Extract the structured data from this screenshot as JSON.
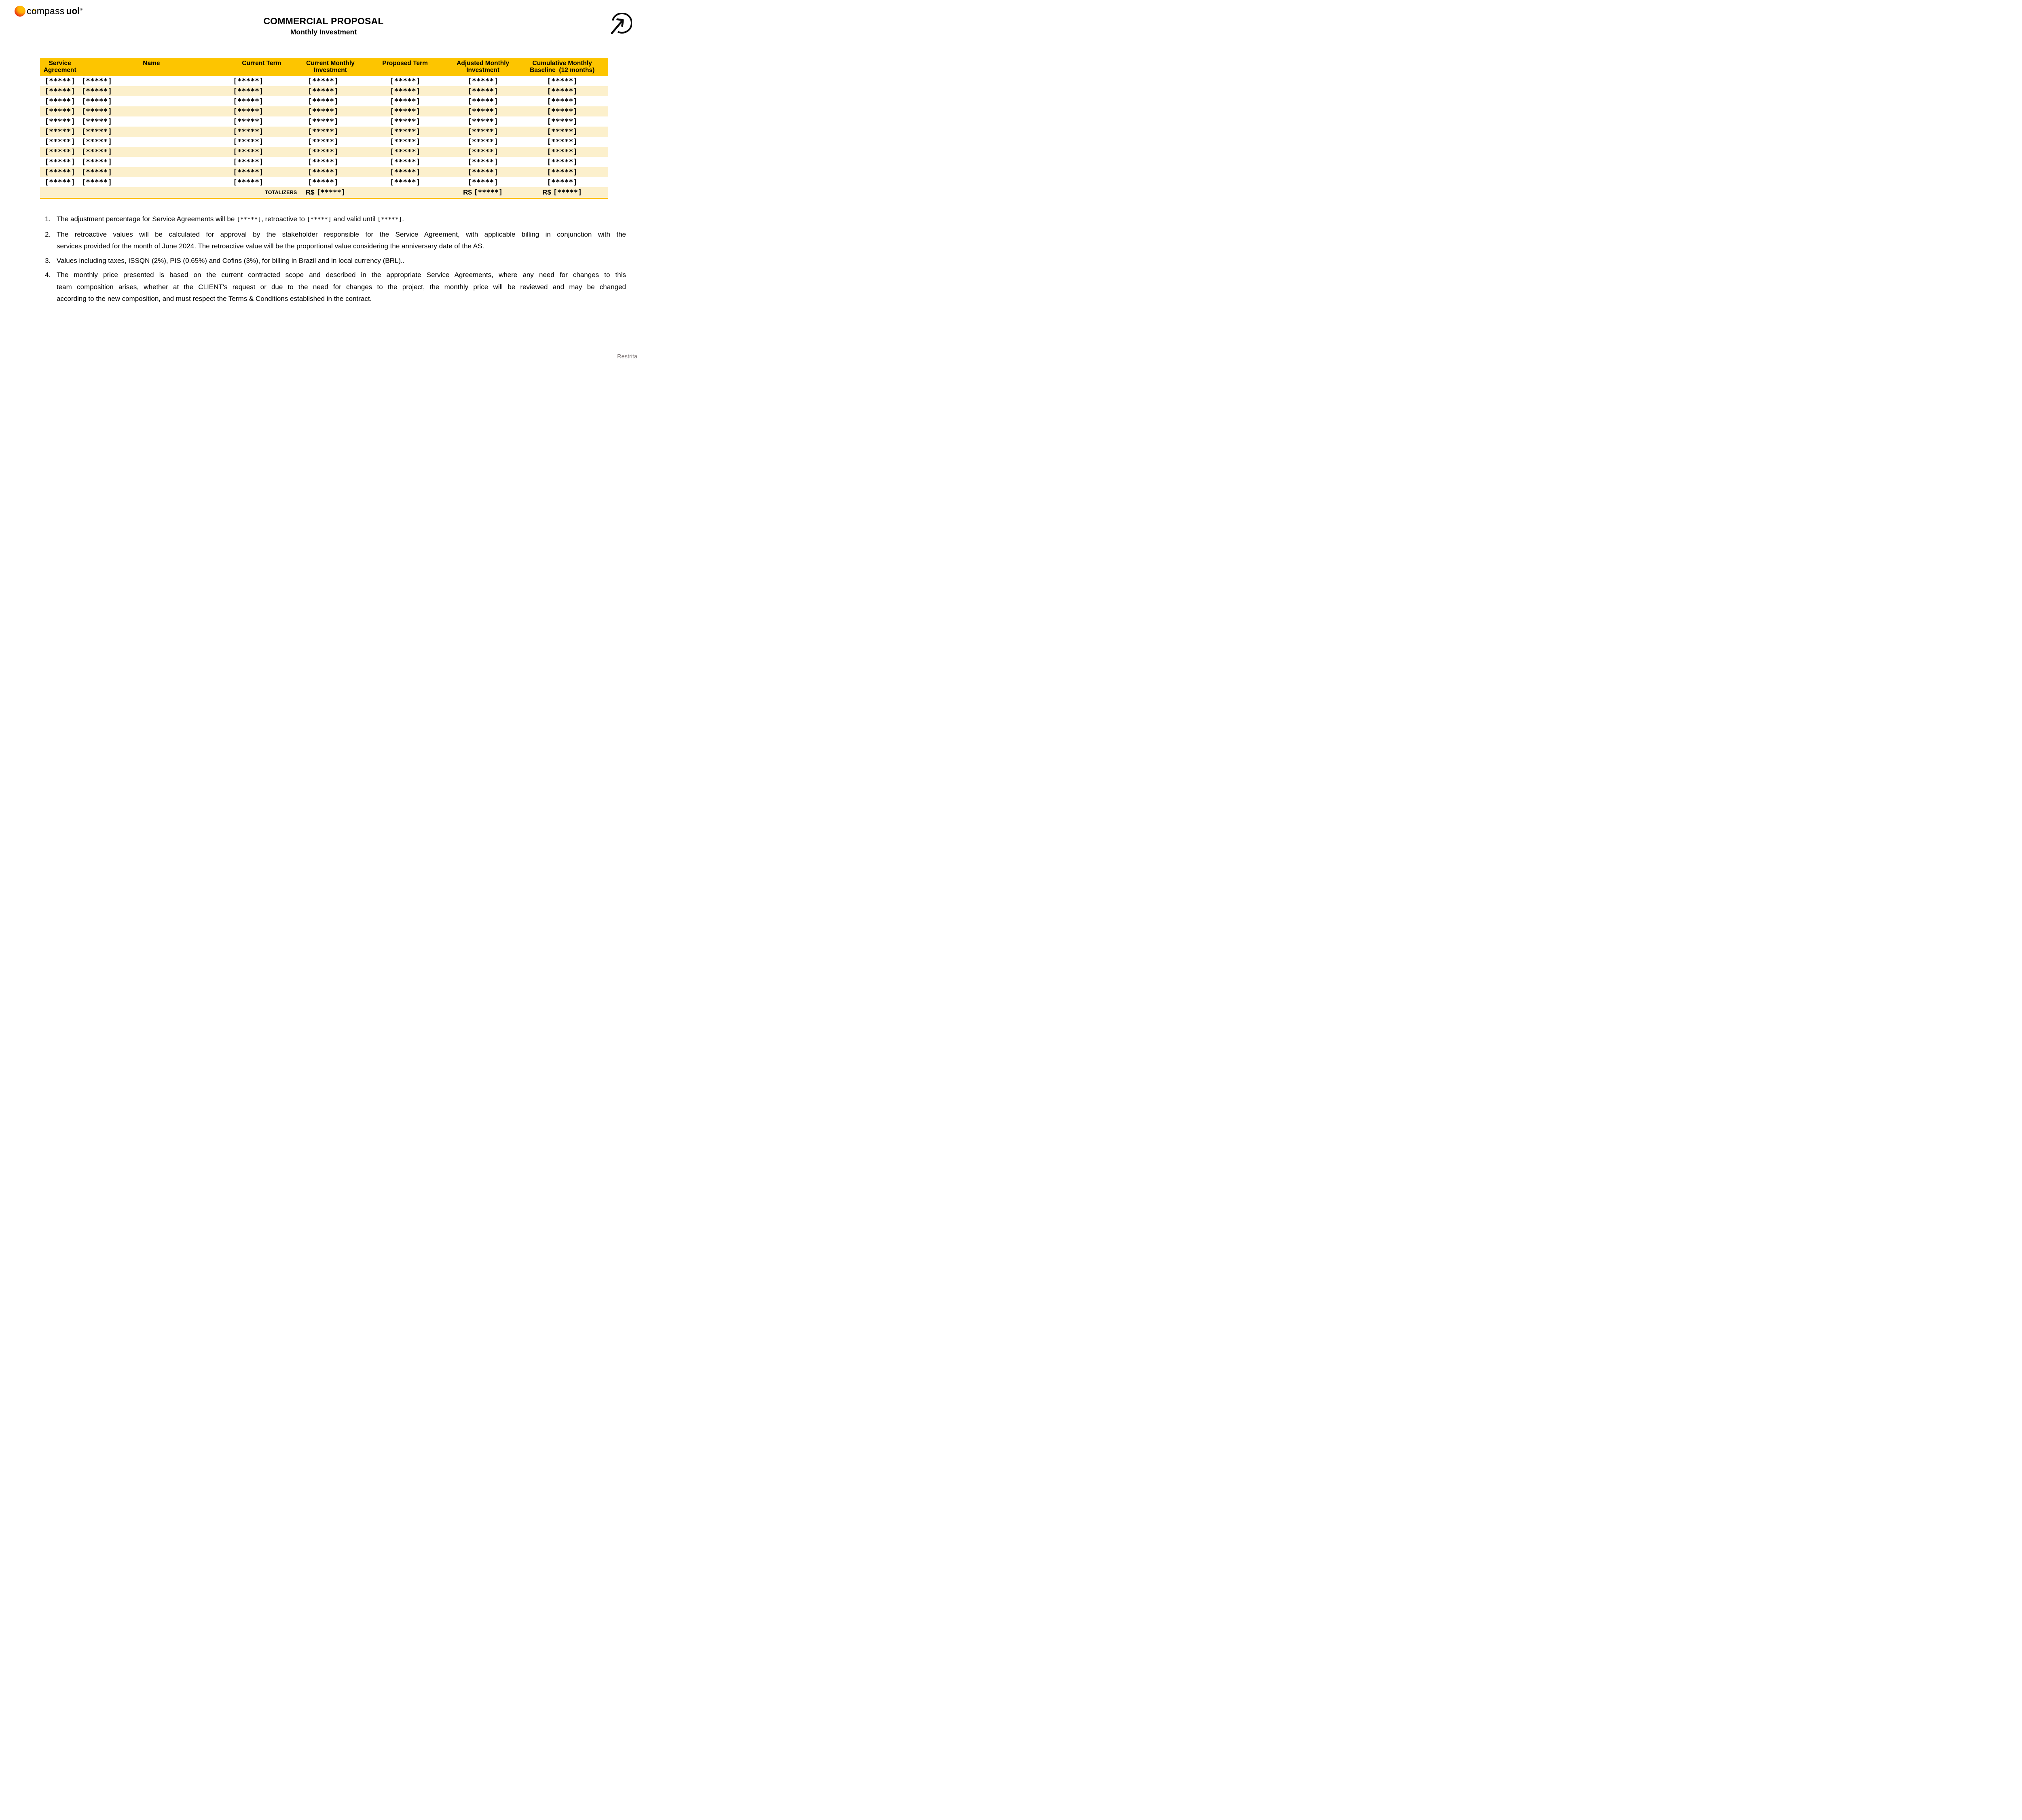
{
  "logo": {
    "compass_c": "c",
    "compass_o": "o",
    "compass_rest": "mpass",
    "uol": "uol",
    "registered": "®"
  },
  "header": {
    "title": "COMMERCIAL PROPOSAL",
    "subtitle": "Monthly Investment"
  },
  "icons": {
    "top_right": "arrow-up-right-circle-icon",
    "logo_mark": "compass-uol-sphere",
    "logo_needle": "compass-needle"
  },
  "colors": {
    "header_gold": "#FDC500",
    "row_cream": "#FCF0CC",
    "totalizer_bar": "#FDBC02",
    "footer_gray": "#7B7474",
    "logo_red": "#E93111",
    "logo_orange": "#F4740C",
    "logo_yellow": "#FFC502"
  },
  "table": {
    "placeholder": "[*****]",
    "columns": [
      {
        "id": "service_agreement",
        "lines": [
          "Service",
          "Agreement"
        ],
        "width_pct": 7.0
      },
      {
        "id": "name",
        "lines": [
          "Name"
        ],
        "width_pct": 25.2
      },
      {
        "id": "current_term",
        "lines": [
          "Current Term"
        ],
        "width_pct": 13.6
      },
      {
        "id": "current_monthly_investment",
        "lines": [
          "Current Monthly",
          "Investment"
        ],
        "width_pct": 10.6
      },
      {
        "id": "proposed_term",
        "lines": [
          "Proposed Term"
        ],
        "width_pct": 15.7
      },
      {
        "id": "adjusted_monthly_investment",
        "lines": [
          "Adjusted Monthly",
          "Investment"
        ],
        "width_pct": 11.7
      },
      {
        "id": "cumulative_monthly_baseline",
        "lines": [
          "Cumulative Monthly",
          "Baseline  (12 months)"
        ],
        "width_pct": 16.2
      }
    ],
    "rows": [
      [
        "[*****]",
        "[*****]",
        "[*****]",
        "[*****]",
        "[*****]",
        "[*****]",
        "[*****]"
      ],
      [
        "[*****]",
        "[*****]",
        "[*****]",
        "[*****]",
        "[*****]",
        "[*****]",
        "[*****]"
      ],
      [
        "[*****]",
        "[*****]",
        "[*****]",
        "[*****]",
        "[*****]",
        "[*****]",
        "[*****]"
      ],
      [
        "[*****]",
        "[*****]",
        "[*****]",
        "[*****]",
        "[*****]",
        "[*****]",
        "[*****]"
      ],
      [
        "[*****]",
        "[*****]",
        "[*****]",
        "[*****]",
        "[*****]",
        "[*****]",
        "[*****]"
      ],
      [
        "[*****]",
        "[*****]",
        "[*****]",
        "[*****]",
        "[*****]",
        "[*****]",
        "[*****]"
      ],
      [
        "[*****]",
        "[*****]",
        "[*****]",
        "[*****]",
        "[*****]",
        "[*****]",
        "[*****]"
      ],
      [
        "[*****]",
        "[*****]",
        "[*****]",
        "[*****]",
        "[*****]",
        "[*****]",
        "[*****]"
      ],
      [
        "[*****]",
        "[*****]",
        "[*****]",
        "[*****]",
        "[*****]",
        "[*****]",
        "[*****]"
      ],
      [
        "[*****]",
        "[*****]",
        "[*****]",
        "[*****]",
        "[*****]",
        "[*****]",
        "[*****]"
      ],
      [
        "[*****]",
        "[*****]",
        "[*****]",
        "[*****]",
        "[*****]",
        "[*****]",
        "[*****]"
      ]
    ],
    "totalizer": {
      "label": "TOTALIZERS",
      "currency": "R$",
      "placeholder": "[*****]",
      "value_columns": [
        3,
        5,
        6
      ]
    }
  },
  "notes": [
    {
      "number": "1.",
      "lines": [
        {
          "last": true,
          "segments": [
            {
              "t": "The adjustment percentage for Service Agreements will be "
            },
            {
              "t": "[*****]",
              "mono": true
            },
            {
              "t": ", retroactive to "
            },
            {
              "t": "[*****]",
              "mono": true
            },
            {
              "t": " and valid until "
            },
            {
              "t": "[*****]",
              "mono": true
            },
            {
              "t": "."
            }
          ]
        }
      ]
    },
    {
      "number": "2.",
      "lines": [
        {
          "last": false,
          "segments": [
            {
              "t": "The retroactive values will be calculated for approval by the stakeholder responsible for the Service Agreement, with applicable billing in conjunction with the"
            }
          ]
        },
        {
          "last": true,
          "segments": [
            {
              "t": "services provided for the month of June 2024. The retroactive value will be the proportional value considering the anniversary date of the AS."
            }
          ]
        }
      ]
    },
    {
      "number": "3.",
      "lines": [
        {
          "last": true,
          "segments": [
            {
              "t": "Values including taxes, ISSQN (2%), PIS (0.65%) and Cofins (3%), for billing in Brazil and in local currency (BRL).."
            }
          ]
        }
      ]
    },
    {
      "number": "4.",
      "lines": [
        {
          "last": false,
          "segments": [
            {
              "t": "The monthly price presented is based on the current contracted scope and described in the appropriate Service Agreements, where any need for changes to this"
            }
          ]
        },
        {
          "last": false,
          "segments": [
            {
              "t": "team composition arises, whether at the CLIENT's request or due to the need for changes to the project, the monthly price will be reviewed and may be changed"
            }
          ]
        },
        {
          "last": true,
          "segments": [
            {
              "t": "according to the new composition, and must respect the Terms & Conditions established in the contract."
            }
          ]
        }
      ]
    }
  ],
  "footer": {
    "classification": "Restrita"
  }
}
